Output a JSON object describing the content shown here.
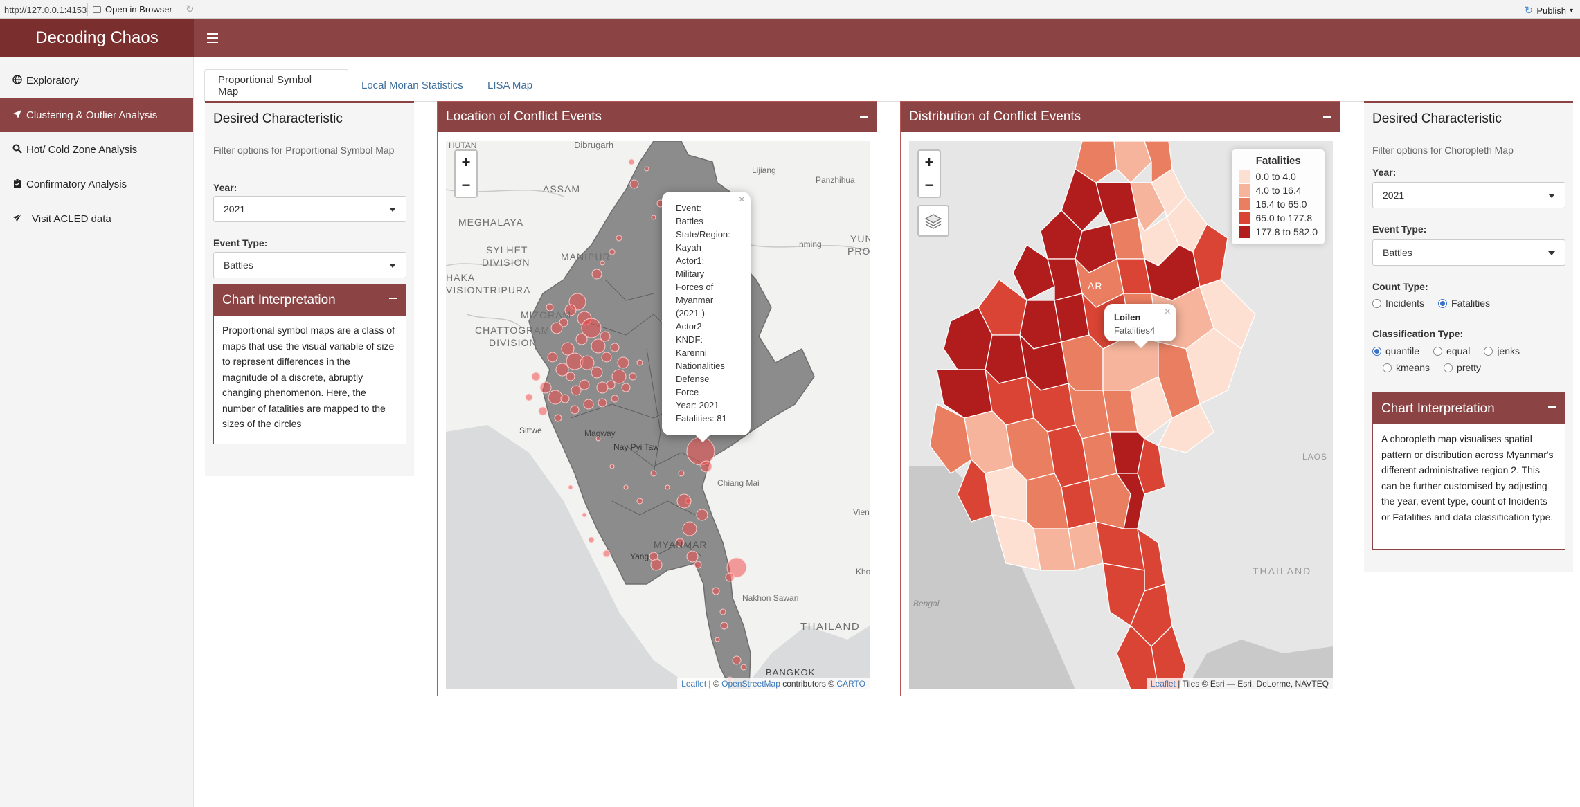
{
  "browser": {
    "url": "http://127.0.0.1:4153",
    "open_in_browser": "Open in Browser",
    "publish": "Publish"
  },
  "app": {
    "title": "Decoding Chaos"
  },
  "sidebar": {
    "items": [
      {
        "label": "Exploratory",
        "icon": "globe-icon"
      },
      {
        "label": "Clustering & Outlier Analysis",
        "icon": "location-arrow-icon"
      },
      {
        "label": "Hot/ Cold Zone Analysis",
        "icon": "magnifier-icon"
      },
      {
        "label": "Confirmatory Analysis",
        "icon": "clipboard-icon"
      },
      {
        "label": "Visit ACLED data",
        "icon": "send-icon"
      }
    ],
    "active_index": 1
  },
  "tabs": [
    "Proportional Symbol Map",
    "Local Moran Statistics",
    "LISA Map"
  ],
  "left_panel": {
    "title": "Desired Characteristic",
    "hint": "Filter options for Proportional Symbol Map",
    "year_label": "Year:",
    "year_value": "2021",
    "event_type_label": "Event Type:",
    "event_type_value": "Battles",
    "interp_title": "Chart Interpretation",
    "interp_text": "Proportional symbol maps are a class of maps that use the visual variable of size to represent differences in the magnitude of a discrete, abruptly changing phenomenon. Here, the number of fatalities are mapped to the sizes of the circles"
  },
  "map1": {
    "title": "Location of Conflict Events",
    "zoom_in": "+",
    "zoom_out": "−",
    "labels": {
      "dibrugarh": "Dibrugarh",
      "bhutan": "HUTAN",
      "assam": "ASSAM",
      "meghalaya": "MEGHALAYA",
      "sylhet": "SYLHET",
      "division": "DIVISION",
      "manipur": "MANIPUR",
      "dhaka": "HAKA",
      "vision": "VISION",
      "tripura": "TRIPURA",
      "mizoram": "MIZORAM",
      "chattogram": "CHATTOGRAM",
      "chatto_division": "DIVISION",
      "lijiang": "Lijiang",
      "panzhihua": "Panzhihua",
      "kunming": "nming",
      "yun": "YUN",
      "prov": "PROV",
      "sittwe": "Sittwe",
      "magway": "Magway",
      "naypyitaw": "Nay Pyi Taw",
      "chiangmai": "Chiang Mai",
      "vien": "Vien",
      "yangon": "Yang",
      "myanmar": "MYANMAR",
      "nakhon": "Nakhon Sawan",
      "khon": "Kho",
      "thailand": "THAILAND",
      "bangkok": "BANGKOK"
    },
    "popup": [
      "Event:",
      "Battles",
      "State/Region:",
      "Kayah",
      "Actor1:",
      "Military",
      "Forces of",
      "Myanmar",
      "(2021-)",
      "Actor2:",
      "KNDF:",
      "Karenni",
      "Nationalities",
      "Defense",
      "Force",
      "Year: 2021",
      "Fatalities: 81"
    ],
    "popup_close": "×",
    "attrib_leaflet": "Leaflet",
    "attrib_mid": " | © ",
    "attrib_osm": "OpenStreetMap",
    "attrib_contrib": " contributors © ",
    "attrib_carto": "CARTO"
  },
  "map2": {
    "title": "Distribution of Conflict Events",
    "zoom_in": "+",
    "zoom_out": "−",
    "labels": {
      "laos": "LAOS",
      "thailand": "THAILAND",
      "bengal": "Bengal",
      "ar": "AR"
    },
    "popup_title": "Loilen",
    "popup_value": "Fatalities4",
    "popup_close": "×",
    "legend_title": "Fatalities",
    "legend": [
      {
        "label": "0.0 to 4.0",
        "color": "#fde0d2"
      },
      {
        "label": "4.0 to 16.4",
        "color": "#f5b49b"
      },
      {
        "label": "16.4 to 65.0",
        "color": "#ea7e61"
      },
      {
        "label": "65.0 to 177.8",
        "color": "#d94434"
      },
      {
        "label": "177.8 to 582.0",
        "color": "#b11c1c"
      }
    ],
    "attrib_leaflet": "Leaflet",
    "attrib_rest": " | Tiles © Esri — Esri, DeLorme, NAVTEQ"
  },
  "right_panel": {
    "title": "Desired Characteristic",
    "hint": "Filter options for Choropleth Map",
    "year_label": "Year:",
    "year_value": "2021",
    "event_type_label": "Event Type:",
    "event_type_value": "Battles",
    "count_type_label": "Count Type:",
    "count_options": [
      "Incidents",
      "Fatalities"
    ],
    "count_selected": "Fatalities",
    "class_label": "Classification Type:",
    "class_options": [
      "quantile",
      "equal",
      "jenks",
      "kmeans",
      "pretty"
    ],
    "class_selected": "quantile",
    "interp_title": "Chart Interpretation",
    "interp_text": "A choropleth map visualises spatial pattern or distribution across Myanmar's different administrative region 2. This can be further customised by adjusting the year, event type, count of Incidents or Fatalities and data classification type."
  },
  "colors": {
    "brand_dark": "#7a2e2e",
    "brand": "#8b4343",
    "link": "#3c6e9c"
  }
}
